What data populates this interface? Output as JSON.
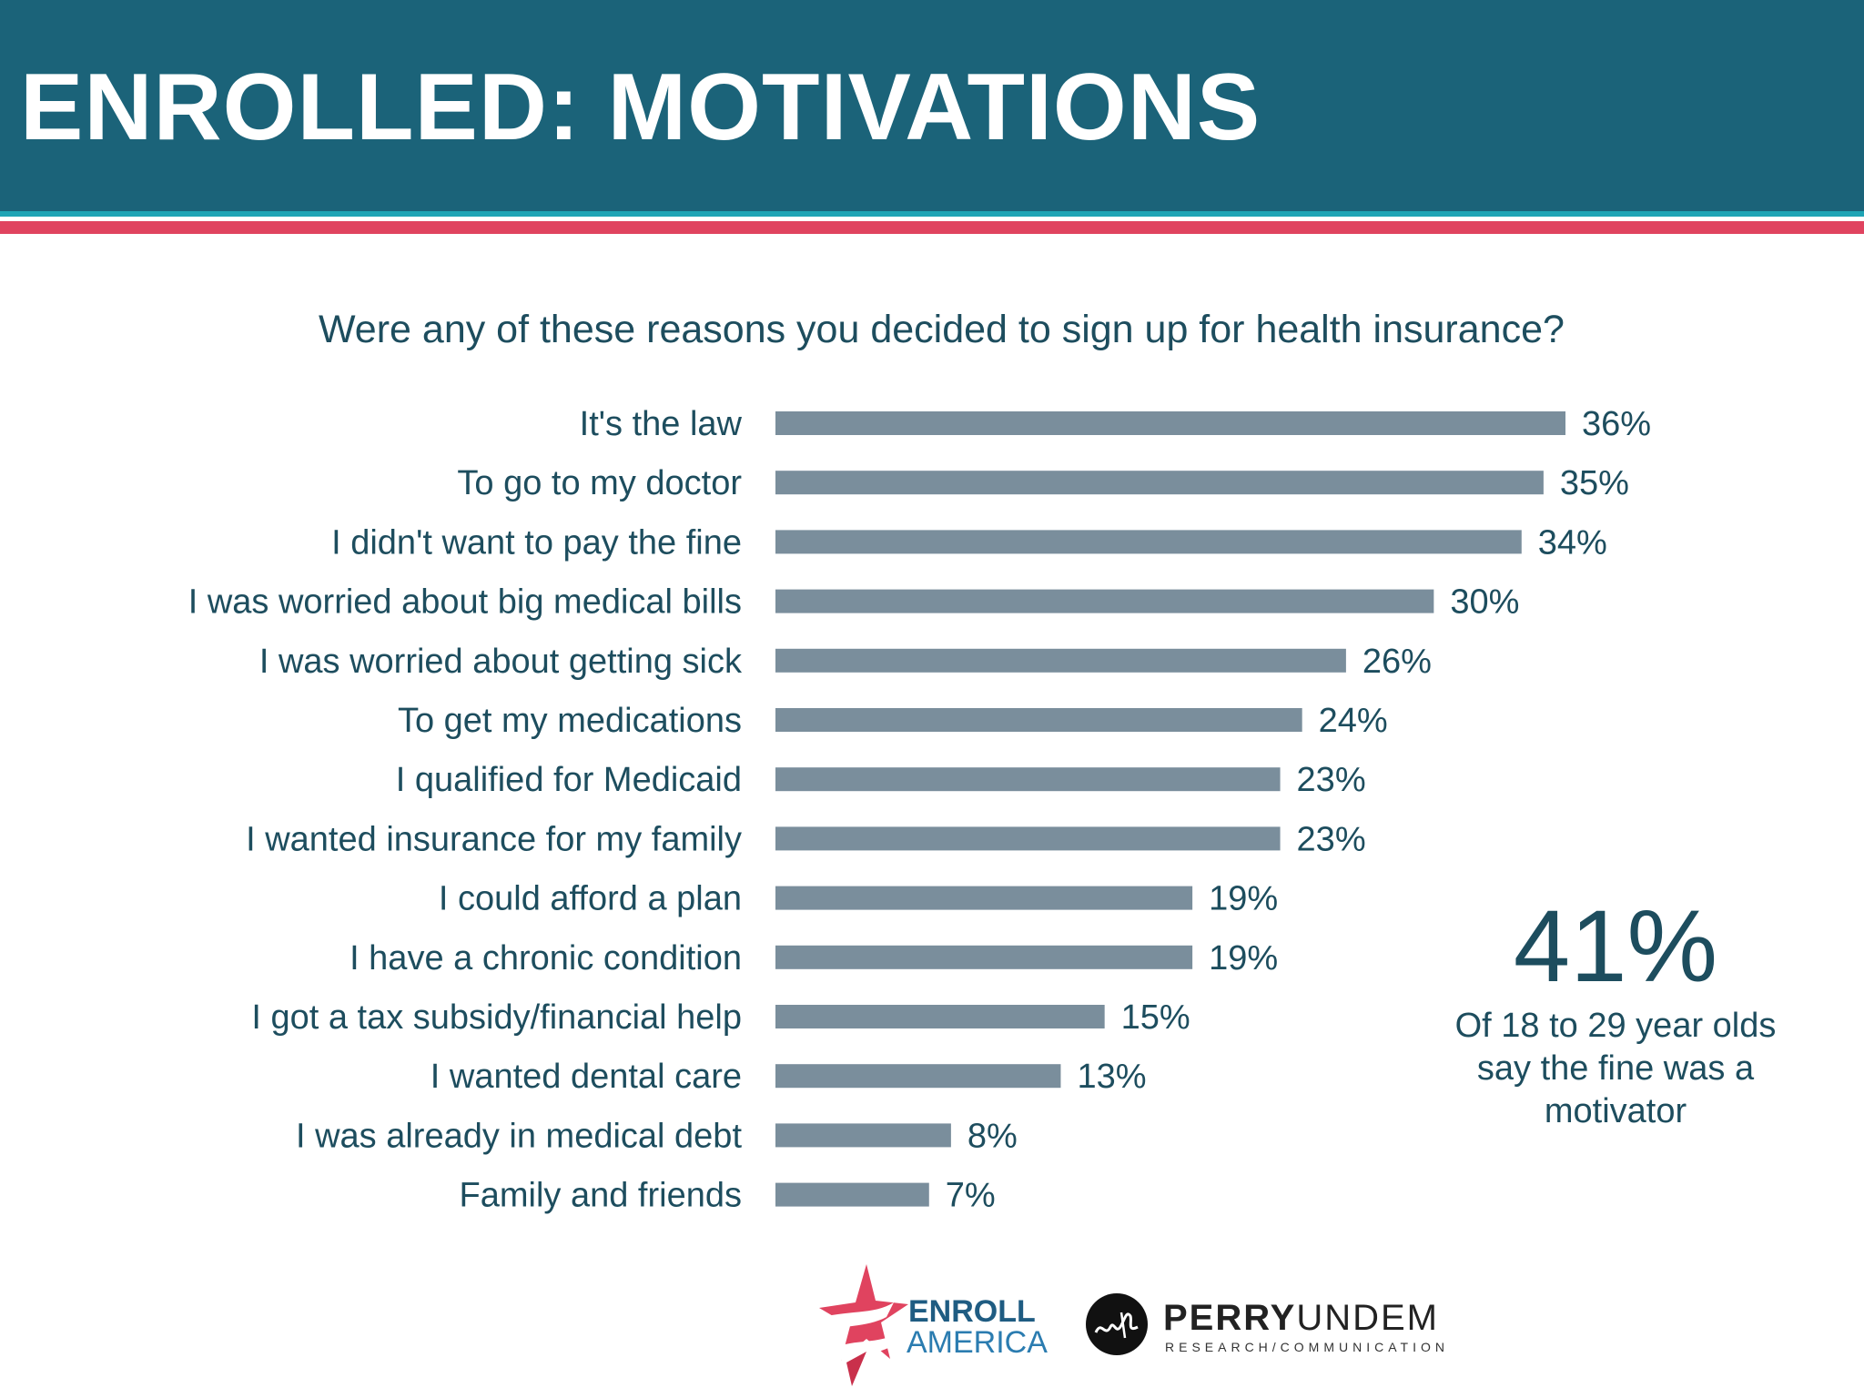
{
  "header": {
    "title": "ENROLLED: MOTIVATIONS"
  },
  "colors": {
    "header_bg": "#1b6379",
    "stripe_teal": "#1fa4b5",
    "stripe_red": "#e0435f",
    "bar": "#7a8e9c",
    "text": "#1d4d5e"
  },
  "chart_data": {
    "type": "bar",
    "orientation": "horizontal",
    "title": "Were any of these reasons you decided to sign up for health insurance?",
    "categories": [
      "It's the law",
      "To go to my doctor",
      "I didn't want to pay the fine",
      "I was worried about big medical bills",
      "I was worried about getting sick",
      "To get my medications",
      "I qualified for Medicaid",
      "I wanted insurance for my family",
      "I could afford a plan",
      "I have a chronic condition",
      "I got a tax subsidy/financial help",
      "I wanted dental care",
      "I was already in medical debt",
      "Family and friends"
    ],
    "values": [
      36,
      35,
      34,
      30,
      26,
      24,
      23,
      23,
      19,
      19,
      15,
      13,
      8,
      7
    ],
    "value_labels": [
      "36%",
      "35%",
      "34%",
      "30%",
      "26%",
      "24%",
      "23%",
      "23%",
      "19%",
      "19%",
      "15%",
      "13%",
      "8%",
      "7%"
    ],
    "xlim": [
      0,
      36
    ],
    "grid": false,
    "legend": "none"
  },
  "callout": {
    "value": "41%",
    "text_lines": [
      "Of 18 to 29 year olds",
      "say the fine was a",
      "motivator"
    ]
  },
  "logos": {
    "enroll": {
      "line1": "ENROLL",
      "line2": "AMERICA"
    },
    "perry": {
      "name_bold": "PERRY",
      "name_light": "UNDEM",
      "subtitle": "RESEARCH/COMMUNICATION"
    }
  }
}
